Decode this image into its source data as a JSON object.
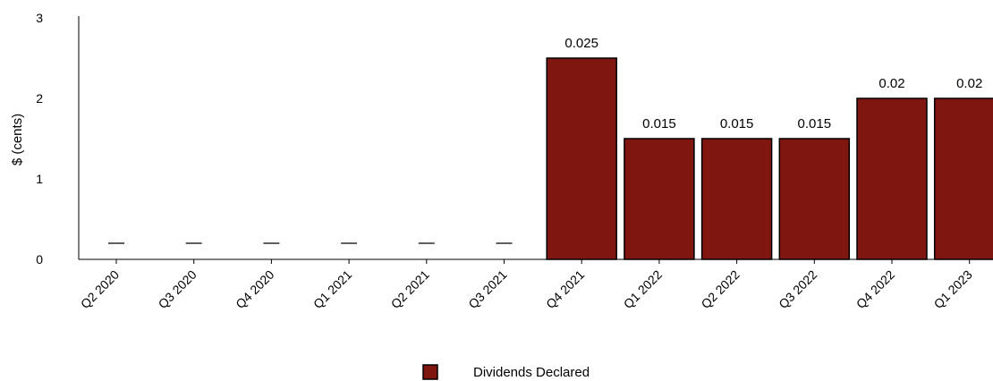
{
  "chart_data": {
    "type": "bar",
    "title": "",
    "xlabel": "",
    "ylabel": "$ (cents)",
    "ylim": [
      0,
      3
    ],
    "yticks": [
      0,
      1,
      2,
      3
    ],
    "categories": [
      "Q2 2020",
      "Q3 2020",
      "Q4 2020",
      "Q1 2021",
      "Q2 2021",
      "Q3 2021",
      "Q4 2021",
      "Q1 2022",
      "Q2 2022",
      "Q3 2022",
      "Q4 2022",
      "Q1 2023"
    ],
    "series": [
      {
        "name": "Dividends Declared",
        "values": [
          null,
          null,
          null,
          null,
          null,
          null,
          2.5,
          1.5,
          1.5,
          1.5,
          2.0,
          2.0
        ],
        "data_labels": [
          "—",
          "—",
          "—",
          "—",
          "—",
          "—",
          "0.025",
          "0.015",
          "0.015",
          "0.015",
          "0.02",
          "0.02"
        ],
        "color": "#7f1710"
      }
    ],
    "legend": {
      "position": "bottom",
      "entries": [
        "Dividends Declared"
      ]
    },
    "grid": false
  }
}
